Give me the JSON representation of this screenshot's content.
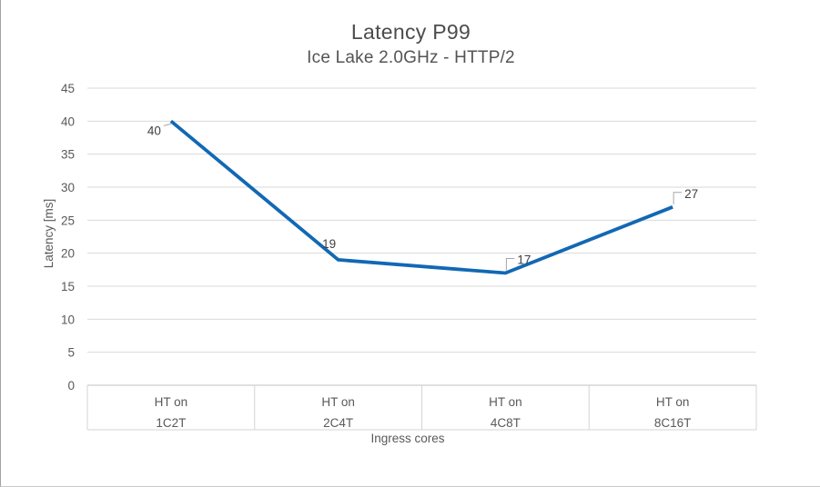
{
  "chart_data": {
    "type": "line",
    "title": "Latency P99",
    "subtitle": "Ice Lake 2.0GHz - HTTP/2",
    "ylabel": "Latency [ms]",
    "xlabel": "Ingress cores",
    "categories": [
      {
        "line1": "HT on",
        "line2": "1C2T"
      },
      {
        "line1": "HT on",
        "line2": "2C4T"
      },
      {
        "line1": "HT on",
        "line2": "4C8T"
      },
      {
        "line1": "HT on",
        "line2": "8C16T"
      }
    ],
    "series": [
      {
        "name": "Latency P99",
        "values": [
          40,
          19,
          17,
          27
        ]
      }
    ],
    "data_labels": [
      "40",
      "19",
      "17",
      "27"
    ],
    "label_styles": [
      "dash-left",
      "above",
      "callout",
      "callout"
    ],
    "ylim": [
      0,
      45
    ],
    "ytick_step": 5,
    "grid": true,
    "legend": "none",
    "colors": {
      "line": "#1268b4",
      "grid": "#d9d9d9",
      "axis_line": "#c0c0c0",
      "table_border": "#d4d4d4",
      "axis_text": "#595959",
      "data_label": "#404040",
      "leader": "#a6a6a6",
      "title": "#4c4c4c"
    }
  }
}
